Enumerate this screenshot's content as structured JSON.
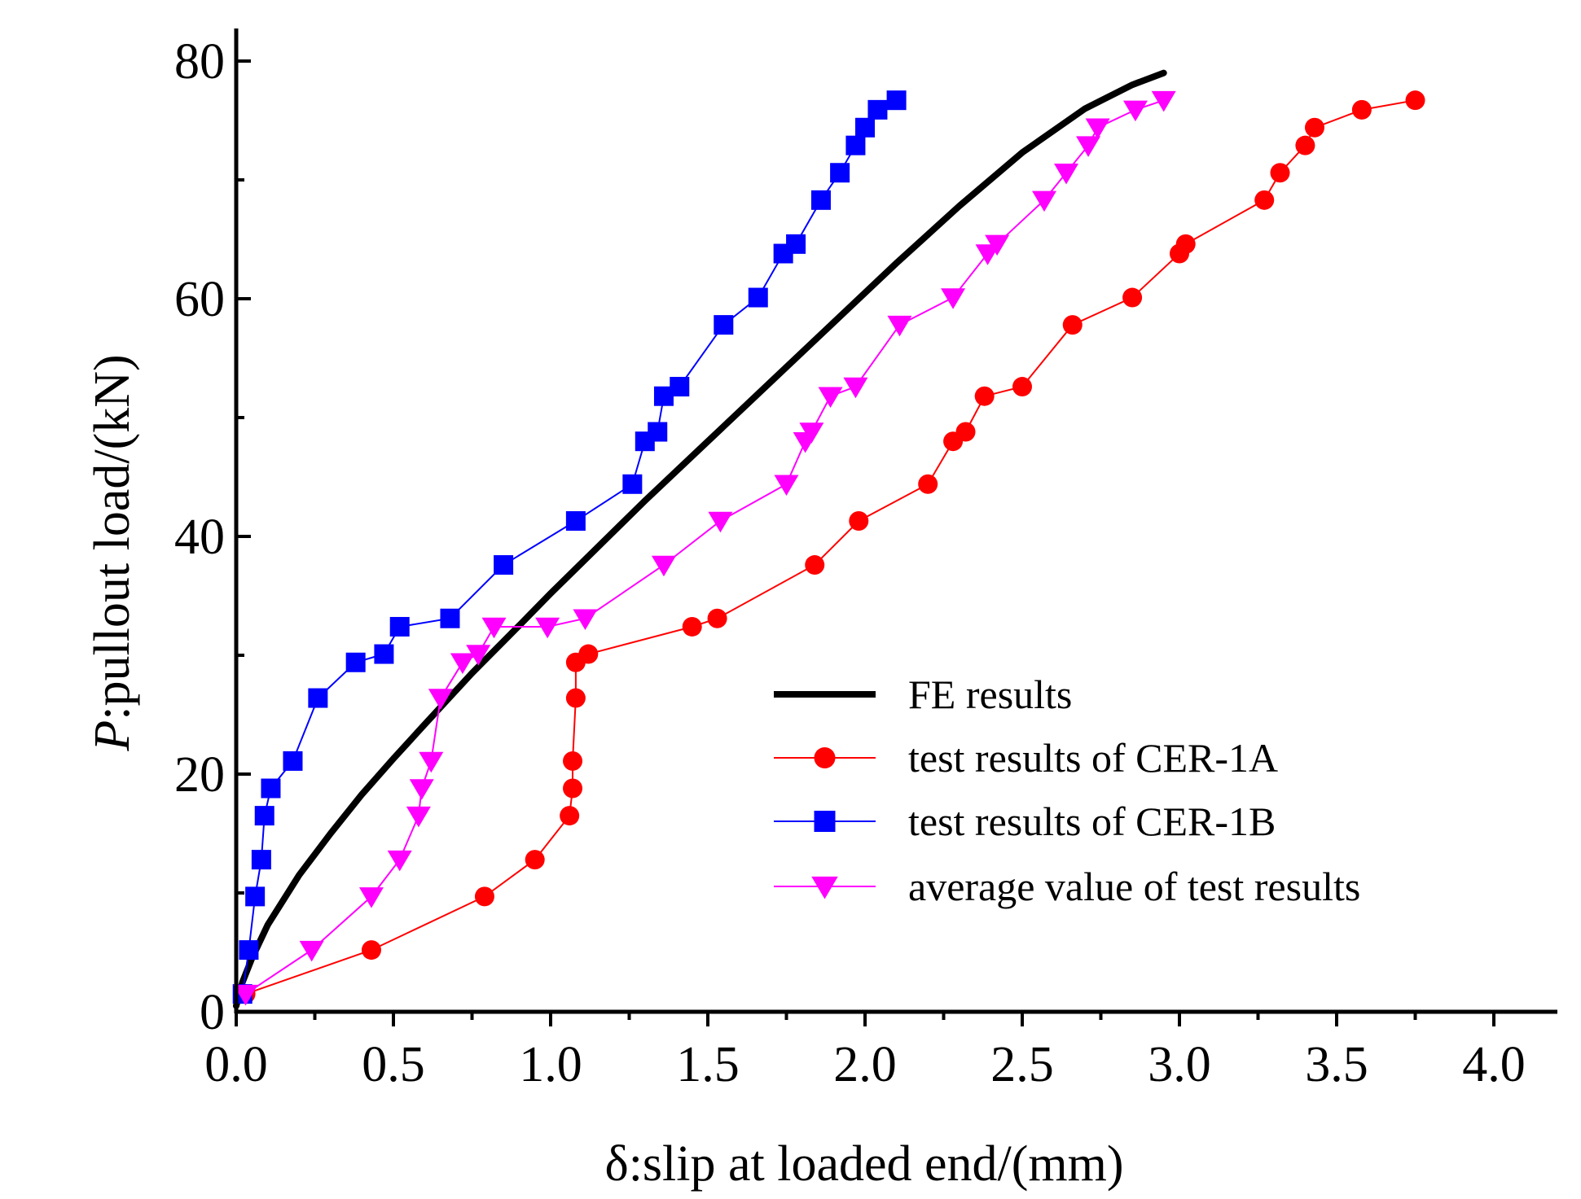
{
  "chart_data": {
    "type": "line",
    "xlabel": "δ:slip at loaded end/(mm)",
    "ylabel_prefix": "P",
    "ylabel": ":pullout load/(kN)",
    "xlim": [
      0,
      4.2
    ],
    "ylim": [
      0,
      80
    ],
    "x_ticks": [
      0.0,
      0.5,
      1.0,
      1.5,
      2.0,
      2.5,
      3.0,
      3.5,
      4.0
    ],
    "x_tick_labels": [
      "0.0",
      "0.5",
      "1.0",
      "1.5",
      "2.0",
      "2.5",
      "3.0",
      "3.5",
      "4.0"
    ],
    "y_ticks": [
      0,
      20,
      40,
      60,
      80
    ],
    "y_tick_labels": [
      "0",
      "20",
      "40",
      "60",
      "80"
    ],
    "grid": false,
    "legend_position": "bottom-right",
    "series": [
      {
        "name": "FE results",
        "color": "#000000",
        "marker": "none",
        "x": [
          0.0,
          0.02,
          0.05,
          0.1,
          0.2,
          0.3,
          0.4,
          0.5,
          0.6,
          0.75,
          0.9,
          1.0,
          1.1,
          1.3,
          1.5,
          1.7,
          1.9,
          2.1,
          2.3,
          2.5,
          2.7,
          2.85,
          2.95
        ],
        "y": [
          0.5,
          2.5,
          4.5,
          7.3,
          11.5,
          15.0,
          18.3,
          21.3,
          24.2,
          28.5,
          32.5,
          35.2,
          37.8,
          43.0,
          48.0,
          53.0,
          58.0,
          63.0,
          67.8,
          72.3,
          76.0,
          78.0,
          79.0
        ]
      },
      {
        "name": "test results of CER-1A",
        "color": "#ff0000",
        "marker": "circle",
        "x": [
          0.03,
          0.43,
          0.79,
          0.95,
          1.06,
          1.07,
          1.07,
          1.08,
          1.08,
          1.12,
          1.45,
          1.53,
          1.84,
          1.98,
          2.2,
          2.28,
          2.32,
          2.38,
          2.5,
          2.66,
          2.85,
          3.0,
          3.02,
          3.27,
          3.32,
          3.4,
          3.43,
          3.58,
          3.75
        ],
        "y": [
          1.5,
          5.2,
          9.7,
          12.8,
          16.5,
          18.8,
          21.1,
          26.4,
          29.4,
          30.1,
          32.4,
          33.1,
          37.6,
          41.3,
          44.4,
          48.0,
          48.8,
          51.8,
          52.6,
          57.8,
          60.1,
          63.8,
          64.6,
          68.3,
          70.6,
          72.9,
          74.4,
          75.9,
          76.7
        ]
      },
      {
        "name": "test results of CER-1B",
        "color": "#0000ff",
        "marker": "square",
        "x": [
          0.02,
          0.04,
          0.06,
          0.08,
          0.09,
          0.11,
          0.18,
          0.26,
          0.38,
          0.47,
          0.52,
          0.68,
          0.85,
          1.08,
          1.26,
          1.3,
          1.34,
          1.36,
          1.41,
          1.55,
          1.66,
          1.74,
          1.78,
          1.86,
          1.92,
          1.97,
          2.0,
          2.04,
          2.1
        ],
        "y": [
          1.5,
          5.2,
          9.7,
          12.8,
          16.5,
          18.8,
          21.1,
          26.4,
          29.4,
          30.1,
          32.4,
          33.1,
          37.6,
          41.3,
          44.4,
          48.0,
          48.8,
          51.8,
          52.6,
          57.8,
          60.1,
          63.8,
          64.6,
          68.3,
          70.6,
          72.9,
          74.4,
          75.9,
          76.7
        ]
      },
      {
        "name": "average value of test results",
        "color": "#ff00ff",
        "marker": "triangle-down",
        "x": [
          0.03,
          0.24,
          0.43,
          0.52,
          0.58,
          0.59,
          0.62,
          0.65,
          0.72,
          0.77,
          0.82,
          0.99,
          1.11,
          1.36,
          1.54,
          1.75,
          1.81,
          1.83,
          1.89,
          1.97,
          2.11,
          2.28,
          2.39,
          2.42,
          2.57,
          2.64,
          2.71,
          2.74,
          2.86,
          2.95
        ],
        "y": [
          1.5,
          5.2,
          9.7,
          12.8,
          16.5,
          18.8,
          21.1,
          26.4,
          29.4,
          30.1,
          32.4,
          32.4,
          33.1,
          37.6,
          41.3,
          44.4,
          48.0,
          48.8,
          51.8,
          52.6,
          57.8,
          60.1,
          63.8,
          64.6,
          68.3,
          70.6,
          72.9,
          74.4,
          75.9,
          76.7
        ]
      }
    ]
  }
}
